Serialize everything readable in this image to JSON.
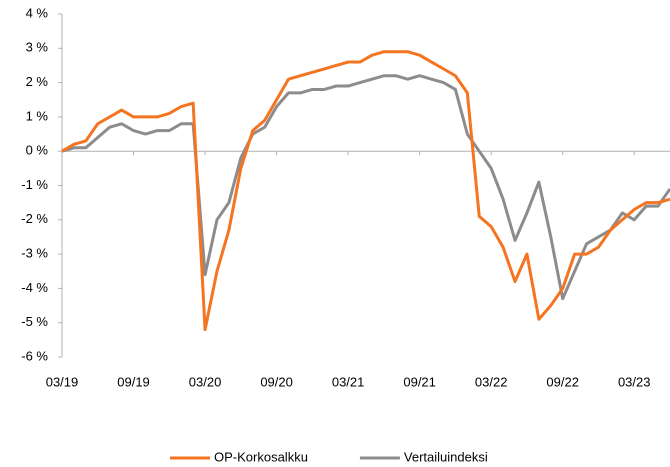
{
  "chart_data": {
    "type": "line",
    "x": [
      "03/19",
      null,
      null,
      null,
      null,
      null,
      "09/19",
      null,
      null,
      null,
      null,
      null,
      "03/20",
      null,
      null,
      null,
      null,
      null,
      "09/20",
      null,
      null,
      null,
      null,
      null,
      "03/21",
      null,
      null,
      null,
      null,
      null,
      "09/21",
      null,
      null,
      null,
      null,
      null,
      "03/22",
      null,
      null,
      null,
      null,
      null,
      "09/22",
      null,
      null,
      null,
      null,
      null,
      "03/23",
      null,
      null,
      null
    ],
    "series": [
      {
        "name": "OP-Korkosalkku",
        "color": "#f47421",
        "values": [
          0.0,
          0.2,
          0.3,
          0.8,
          1.0,
          1.2,
          1.0,
          1.0,
          1.0,
          1.1,
          1.3,
          1.4,
          -5.2,
          -3.5,
          -2.3,
          -0.5,
          0.6,
          0.9,
          1.5,
          2.1,
          2.2,
          2.3,
          2.4,
          2.5,
          2.6,
          2.6,
          2.8,
          2.9,
          2.9,
          2.9,
          2.8,
          2.6,
          2.4,
          2.2,
          1.7,
          -1.9,
          -2.2,
          -2.8,
          -3.8,
          -3.0,
          -4.9,
          -4.5,
          -4.0,
          -3.0,
          -3.0,
          -2.8,
          -2.3,
          -2.0,
          -1.7,
          -1.5,
          -1.5,
          -1.4
        ]
      },
      {
        "name": "Vertailuindeksi",
        "color": "#8c8c8c",
        "values": [
          0.0,
          0.1,
          0.1,
          0.4,
          0.7,
          0.8,
          0.6,
          0.5,
          0.6,
          0.6,
          0.8,
          0.8,
          -3.6,
          -2.0,
          -1.5,
          -0.2,
          0.5,
          0.7,
          1.3,
          1.7,
          1.7,
          1.8,
          1.8,
          1.9,
          1.9,
          2.0,
          2.1,
          2.2,
          2.2,
          2.1,
          2.2,
          2.1,
          2.0,
          1.8,
          0.5,
          0.0,
          -0.5,
          -1.4,
          -2.6,
          -1.8,
          -0.9,
          -2.5,
          -4.3,
          -3.5,
          -2.7,
          -2.5,
          -2.3,
          -1.8,
          -2.0,
          -1.6,
          -1.6,
          -1.1
        ]
      }
    ],
    "ylim": [
      -6,
      4
    ],
    "yticks": [
      {
        "value": 4,
        "label": "4 %"
      },
      {
        "value": 3,
        "label": "3 %"
      },
      {
        "value": 2,
        "label": "2 %"
      },
      {
        "value": 1,
        "label": "1 %"
      },
      {
        "value": 0,
        "label": "0 %"
      },
      {
        "value": -1,
        "label": "-1 %"
      },
      {
        "value": -2,
        "label": "-2 %"
      },
      {
        "value": -3,
        "label": "-3 %"
      },
      {
        "value": -4,
        "label": "-4 %"
      },
      {
        "value": -5,
        "label": "-5 %"
      },
      {
        "value": -6,
        "label": "-6 %"
      }
    ],
    "legend": "bottom"
  }
}
